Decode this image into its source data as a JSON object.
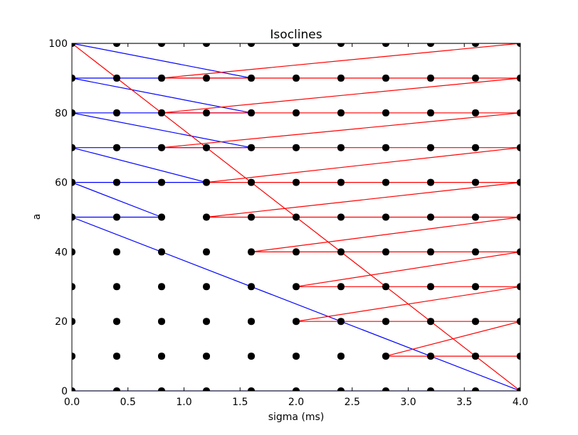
{
  "chart_data": {
    "type": "line",
    "title": "Isoclines",
    "xlabel": "sigma (ms)",
    "ylabel": "a",
    "xlim": [
      0,
      4
    ],
    "ylim": [
      0,
      100
    ],
    "xticks": [
      0.0,
      0.5,
      1.0,
      1.5,
      2.0,
      2.5,
      3.0,
      3.5,
      4.0
    ],
    "xtick_labels": [
      "0.0",
      "0.5",
      "1.0",
      "1.5",
      "2.0",
      "2.5",
      "3.0",
      "3.5",
      "4.0"
    ],
    "yticks": [
      0,
      20,
      40,
      60,
      80,
      100
    ],
    "ytick_labels": [
      "0",
      "20",
      "40",
      "60",
      "80",
      "100"
    ],
    "grid": false,
    "colors": {
      "blue": "#0000ff",
      "red": "#ff0000",
      "points": "#000000"
    },
    "scatter": {
      "x": [
        0.0,
        0.4,
        0.8,
        1.2,
        1.6,
        2.0,
        2.4,
        2.8,
        3.2,
        3.6,
        4.0
      ],
      "y": [
        0,
        10,
        20,
        30,
        40,
        50,
        60,
        70,
        80,
        90,
        100
      ]
    },
    "series": [
      {
        "color": "blue",
        "x": [
          0.0,
          4.0,
          0.0,
          0.0,
          0.8,
          0.0,
          0.0,
          1.2,
          0.0,
          0.0,
          1.6,
          0.0,
          0.0,
          1.6,
          0.0,
          0.0,
          1.6,
          0.0
        ],
        "y": [
          0,
          0,
          50,
          50,
          50,
          60,
          60,
          60,
          70,
          70,
          70,
          80,
          80,
          80,
          90,
          90,
          90,
          100
        ]
      },
      {
        "color": "red",
        "x": [
          4.0,
          2.8,
          2.8,
          4.0,
          2.0,
          2.0,
          4.0,
          2.0,
          2.0,
          4.0,
          1.6,
          1.6,
          4.0,
          1.2,
          1.2,
          4.0,
          1.2,
          1.2,
          4.0,
          0.8,
          0.8,
          4.0,
          0.8,
          0.8,
          4.0,
          0.8,
          0.8,
          4.0,
          0.0,
          0.0,
          4.0
        ],
        "y": [
          10,
          10,
          10,
          20,
          20,
          20,
          30,
          30,
          30,
          40,
          40,
          40,
          50,
          50,
          50,
          60,
          60,
          60,
          70,
          70,
          70,
          80,
          80,
          80,
          90,
          90,
          90,
          100,
          100,
          100,
          0
        ]
      }
    ]
  }
}
